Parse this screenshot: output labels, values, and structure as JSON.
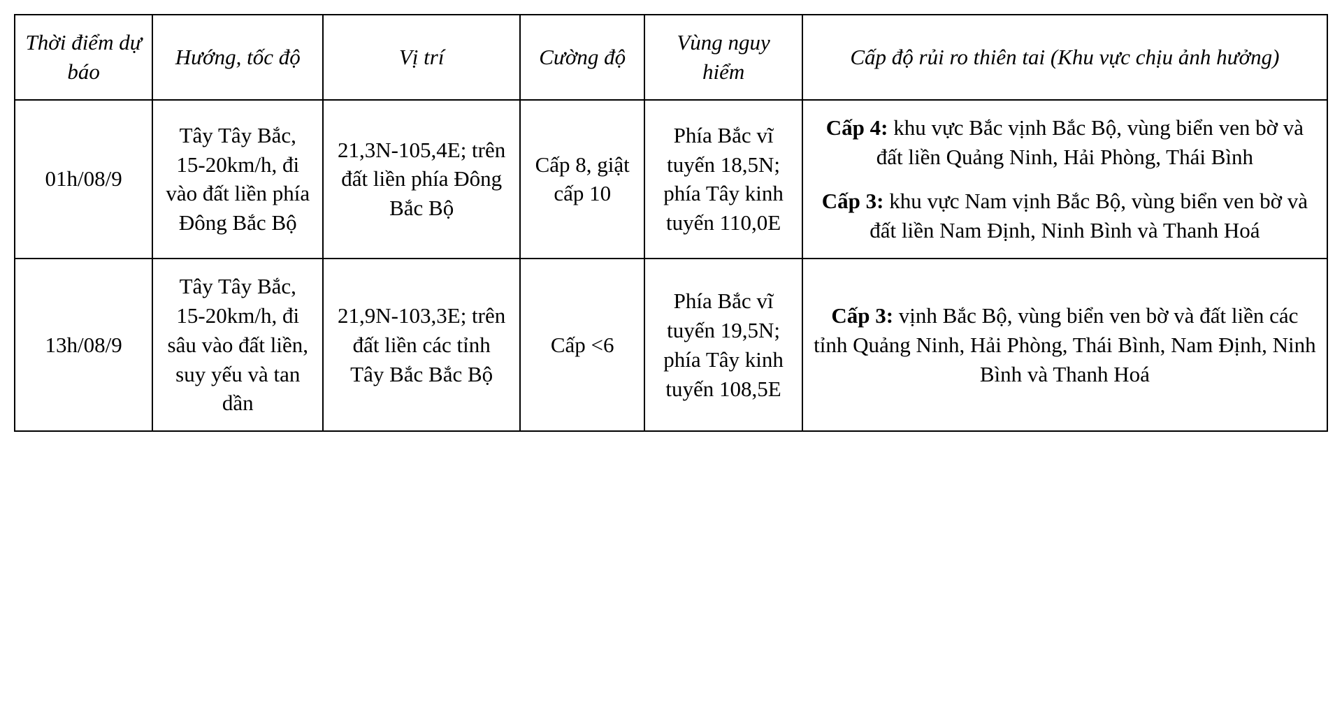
{
  "table": {
    "type": "table",
    "background_color": "#ffffff",
    "border_color": "#000000",
    "text_color": "#000000",
    "font_family": "Times New Roman",
    "header_font_style": "italic",
    "body_fontsize": 31,
    "columns": [
      {
        "label": "Thời điểm dự báo",
        "width_pct": 10.5
      },
      {
        "label": "Hướng, tốc độ",
        "width_pct": 13
      },
      {
        "label": "Vị trí",
        "width_pct": 15
      },
      {
        "label": "Cường độ",
        "width_pct": 9.5
      },
      {
        "label": "Vùng nguy hiểm",
        "width_pct": 12
      },
      {
        "label": "Cấp độ rủi ro thiên tai (Khu vực chịu ảnh hưởng)",
        "width_pct": 40
      }
    ],
    "rows": [
      {
        "time": "01h/08/9",
        "direction": "Tây Tây Bắc, 15-20km/h, đi vào đất liền phía Đông Bắc Bộ",
        "position": "21,3N-105,4E; trên đất liền phía Đông Bắc Bộ",
        "intensity": "Cấp 8, giật  cấp 10",
        "danger_zone": "Phía Bắc vĩ tuyến 18,5N; phía Tây kinh tuyến 110,0E",
        "risk": [
          {
            "label": "Cấp 4:",
            "text": " khu vực Bắc vịnh Bắc Bộ, vùng biển ven bờ và đất liền Quảng Ninh, Hải Phòng, Thái Bình"
          },
          {
            "label": "Cấp 3:",
            "text": " khu vực Nam vịnh Bắc Bộ, vùng biển ven bờ và đất liền Nam Định, Ninh Bình và Thanh Hoá"
          }
        ]
      },
      {
        "time": "13h/08/9",
        "direction": "Tây Tây Bắc, 15-20km/h, đi sâu vào đất liền, suy yếu và tan dần",
        "position": "21,9N-103,3E; trên đất liền các tỉnh Tây Bắc Bắc Bộ",
        "intensity": "Cấp <6",
        "danger_zone": "Phía Bắc vĩ tuyến 19,5N; phía Tây kinh tuyến 108,5E",
        "risk": [
          {
            "label": "Cấp 3:",
            "text": " vịnh Bắc  Bộ, vùng biển ven bờ và đất liền các tỉnh Quảng Ninh, Hải Phòng, Thái Bình, Nam Định, Ninh Bình và Thanh Hoá"
          }
        ]
      }
    ]
  }
}
